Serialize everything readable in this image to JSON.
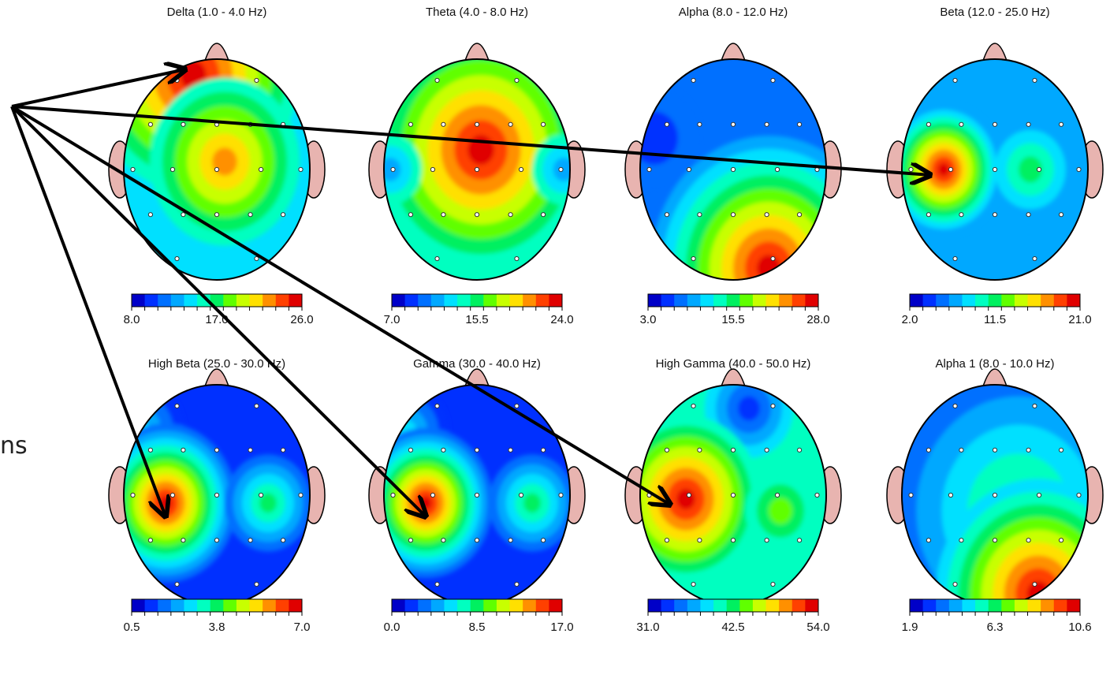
{
  "side_text": "ns",
  "maps": [
    {
      "title": "Delta (1.0 - 4.0 Hz)",
      "scale": [
        "8.0",
        "17.0",
        "26.0"
      ]
    },
    {
      "title": "Theta (4.0 - 8.0 Hz)",
      "scale": [
        "7.0",
        "15.5",
        "24.0"
      ]
    },
    {
      "title": "Alpha (8.0 - 12.0 Hz)",
      "scale": [
        "3.0",
        "15.5",
        "28.0"
      ]
    },
    {
      "title": "Beta (12.0 - 25.0 Hz)",
      "scale": [
        "2.0",
        "11.5",
        "21.0"
      ]
    },
    {
      "title": "High Beta (25.0 - 30.0 Hz)",
      "scale": [
        "0.5",
        "3.8",
        "7.0"
      ]
    },
    {
      "title": "Gamma (30.0 - 40.0 Hz)",
      "scale": [
        "0.0",
        "8.5",
        "17.0"
      ]
    },
    {
      "title": "High Gamma (40.0 - 50.0 Hz)",
      "scale": [
        "31.0",
        "42.5",
        "54.0"
      ]
    },
    {
      "title": "Alpha 1 (8.0 - 10.0 Hz)",
      "scale": [
        "1.9",
        "6.3",
        "10.6"
      ]
    }
  ]
}
